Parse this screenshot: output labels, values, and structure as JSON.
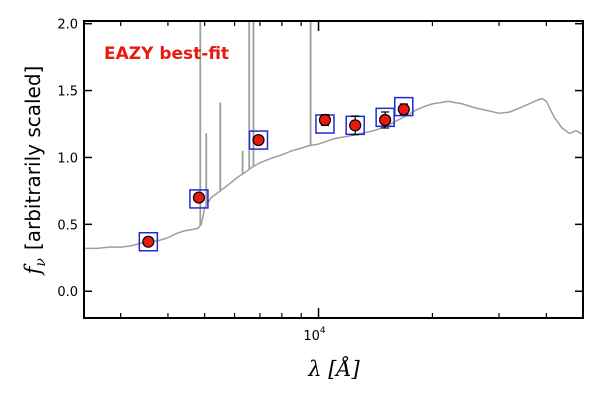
{
  "chart_data": {
    "type": "line",
    "title": "",
    "annotation": "EAZY best-fit",
    "xlabel": "λ [Å]",
    "ylabel_symbol": "f",
    "ylabel_sub": "ν",
    "ylabel_text": "[arbitrarily scaled]",
    "x_scale": "log",
    "xlim": [
      2400,
      50000
    ],
    "ylim": [
      -0.2,
      2.02
    ],
    "x_major_tick_label_base": "10",
    "x_major_tick_label_exp": "4",
    "x_major_tick_value": 10000,
    "x_minor_ticks": [
      3000,
      4000,
      5000,
      6000,
      7000,
      8000,
      9000,
      20000,
      30000,
      40000
    ],
    "y_ticks": [
      0.0,
      0.5,
      1.0,
      1.5,
      2.0
    ],
    "y_tick_labels": [
      "0.0",
      "0.5",
      "1.0",
      "1.5",
      "2.0"
    ],
    "grid": false,
    "colors": {
      "spectrum": "#9e9e9e",
      "observed_fill": "#e8190f",
      "model_box": "#1f2bd6",
      "annotation": "#e8190f"
    },
    "series": [
      {
        "kind": "model_spectrum",
        "x": [
          2400,
          2600,
          2800,
          3000,
          3200,
          3400,
          3600,
          3800,
          4000,
          4200,
          4400,
          4600,
          4800,
          4900,
          5000,
          5200,
          5500,
          5800,
          6100,
          6400,
          6700,
          7000,
          7300,
          7600,
          8000,
          8500,
          9000,
          9500,
          10000,
          11000,
          12000,
          13000,
          14000,
          15000,
          16000,
          17000,
          18000,
          19000,
          20000,
          21000,
          22000,
          23000,
          24000,
          26000,
          28000,
          30000,
          32000,
          34000,
          36000,
          38000,
          39000,
          40000,
          42000,
          44000,
          46000,
          48000,
          50000
        ],
        "y": [
          0.32,
          0.32,
          0.33,
          0.33,
          0.34,
          0.36,
          0.37,
          0.38,
          0.4,
          0.43,
          0.45,
          0.46,
          0.47,
          0.5,
          0.62,
          0.7,
          0.75,
          0.8,
          0.85,
          0.89,
          0.93,
          0.96,
          0.98,
          1.0,
          1.02,
          1.05,
          1.07,
          1.09,
          1.1,
          1.14,
          1.16,
          1.18,
          1.2,
          1.23,
          1.27,
          1.31,
          1.35,
          1.38,
          1.4,
          1.41,
          1.42,
          1.41,
          1.4,
          1.37,
          1.35,
          1.33,
          1.34,
          1.37,
          1.4,
          1.43,
          1.44,
          1.42,
          1.3,
          1.22,
          1.18,
          1.2,
          1.17
        ]
      },
      {
        "kind": "emission_lines",
        "lines": [
          {
            "x": 4870,
            "y": 2.02
          },
          {
            "x": 5050,
            "y": 1.18
          },
          {
            "x": 5500,
            "y": 1.41
          },
          {
            "x": 6300,
            "y": 1.05
          },
          {
            "x": 6560,
            "y": 2.02
          },
          {
            "x": 6730,
            "y": 2.02
          },
          {
            "x": 9530,
            "y": 2.02
          }
        ]
      },
      {
        "kind": "model_photometry",
        "x": [
          3550,
          4830,
          6940,
          10400,
          12500,
          15000,
          16800
        ],
        "y": [
          0.37,
          0.69,
          1.13,
          1.25,
          1.24,
          1.3,
          1.38
        ]
      },
      {
        "kind": "observed_photometry",
        "x": [
          3550,
          4830,
          6940,
          10400,
          12500,
          15000,
          16800
        ],
        "y": [
          0.37,
          0.7,
          1.13,
          1.28,
          1.24,
          1.28,
          1.36
        ],
        "yerr": [
          0.02,
          0.02,
          0.02,
          0.04,
          0.07,
          0.06,
          0.04
        ]
      }
    ]
  }
}
